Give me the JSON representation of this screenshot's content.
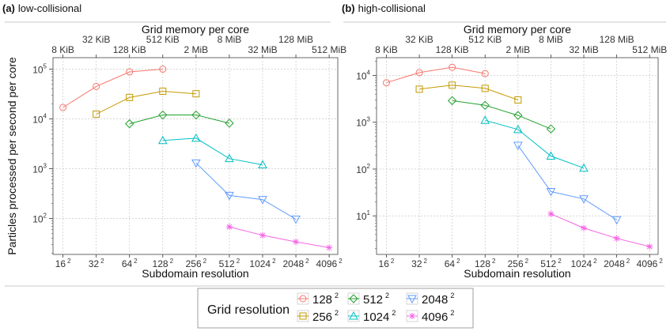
{
  "figure": {
    "y_axis_label": "Particles processed per second per core",
    "x_axis_label": "Subdomain resolution",
    "top_axis_label": "Grid memory per core",
    "legend_title": "Grid resolution"
  },
  "series_styles": [
    {
      "key": "128",
      "label": "128",
      "sup": "2",
      "color": "#f8766d",
      "marker": "circle"
    },
    {
      "key": "256",
      "label": "256",
      "sup": "2",
      "color": "#c49a00",
      "marker": "square"
    },
    {
      "key": "512",
      "label": "512",
      "sup": "2",
      "color": "#22a02c",
      "marker": "diamond"
    },
    {
      "key": "1024",
      "label": "1024",
      "sup": "2",
      "color": "#00bfc4",
      "marker": "triangle-up"
    },
    {
      "key": "2048",
      "label": "2048",
      "sup": "2",
      "color": "#619cff",
      "marker": "triangle-down"
    },
    {
      "key": "4096",
      "label": "4096",
      "sup": "2",
      "color": "#f564e3",
      "marker": "asterisk"
    }
  ],
  "chart_data": [
    {
      "type": "line",
      "panel_tag": "(a)",
      "panel_title": "low-collisional",
      "x_scale": "log2",
      "y_scale": "log10",
      "x_ticks": [
        {
          "value": 16,
          "label": "16",
          "sup": "2"
        },
        {
          "value": 32,
          "label": "32",
          "sup": "2"
        },
        {
          "value": 64,
          "label": "64",
          "sup": "2"
        },
        {
          "value": 128,
          "label": "128",
          "sup": "2"
        },
        {
          "value": 256,
          "label": "256",
          "sup": "2"
        },
        {
          "value": 512,
          "label": "512",
          "sup": "2"
        },
        {
          "value": 1024,
          "label": "1024",
          "sup": "2"
        },
        {
          "value": 2048,
          "label": "2048",
          "sup": "2"
        },
        {
          "value": 4096,
          "label": "4096",
          "sup": "2"
        }
      ],
      "top_ticks_lower": [
        {
          "value": 16,
          "label": "8 KiB"
        },
        {
          "value": 64,
          "label": "128 KiB"
        },
        {
          "value": 256,
          "label": "2 MiB"
        },
        {
          "value": 1024,
          "label": "32 MiB"
        },
        {
          "value": 4096,
          "label": "512 MiB"
        }
      ],
      "top_ticks_upper": [
        {
          "value": 32,
          "label": "32 KiB"
        },
        {
          "value": 128,
          "label": "512 KiB"
        },
        {
          "value": 512,
          "label": "8 MiB"
        },
        {
          "value": 2048,
          "label": "128 MiB"
        }
      ],
      "y_ticks": [
        {
          "value": 100,
          "base": "10",
          "exp": "2"
        },
        {
          "value": 1000,
          "base": "10",
          "exp": "3"
        },
        {
          "value": 10000,
          "base": "10",
          "exp": "4"
        },
        {
          "value": 100000,
          "base": "10",
          "exp": "5"
        }
      ],
      "xlim": [
        13,
        4900
      ],
      "ylim": [
        19,
        170000
      ],
      "series": [
        {
          "key": "128",
          "x": [
            16,
            32,
            64,
            128
          ],
          "y": [
            17000,
            45000,
            88000,
            100000
          ]
        },
        {
          "key": "256",
          "x": [
            32,
            64,
            128,
            256
          ],
          "y": [
            12500,
            27000,
            36000,
            32000
          ]
        },
        {
          "key": "512",
          "x": [
            64,
            128,
            256,
            512
          ],
          "y": [
            8000,
            12000,
            12000,
            8200
          ]
        },
        {
          "key": "1024",
          "x": [
            128,
            256,
            512,
            1024
          ],
          "y": [
            3700,
            4100,
            1600,
            1200
          ]
        },
        {
          "key": "2048",
          "x": [
            256,
            512,
            1024,
            2048
          ],
          "y": [
            1300,
            290,
            240,
            97
          ]
        },
        {
          "key": "4096",
          "x": [
            512,
            1024,
            2048,
            4096
          ],
          "y": [
            68,
            46,
            34,
            26
          ]
        }
      ]
    },
    {
      "type": "line",
      "panel_tag": "(b)",
      "panel_title": "high-collisional",
      "x_scale": "log2",
      "y_scale": "log10",
      "x_ticks": [
        {
          "value": 16,
          "label": "16",
          "sup": "2"
        },
        {
          "value": 32,
          "label": "32",
          "sup": "2"
        },
        {
          "value": 64,
          "label": "64",
          "sup": "2"
        },
        {
          "value": 128,
          "label": "128",
          "sup": "2"
        },
        {
          "value": 256,
          "label": "256",
          "sup": "2"
        },
        {
          "value": 512,
          "label": "512",
          "sup": "2"
        },
        {
          "value": 1024,
          "label": "1024",
          "sup": "2"
        },
        {
          "value": 2048,
          "label": "2048",
          "sup": "2"
        },
        {
          "value": 4096,
          "label": "4096",
          "sup": "2"
        }
      ],
      "top_ticks_lower": [
        {
          "value": 16,
          "label": "8 KiB"
        },
        {
          "value": 64,
          "label": "128 KiB"
        },
        {
          "value": 256,
          "label": "2 MiB"
        },
        {
          "value": 1024,
          "label": "32 MiB"
        },
        {
          "value": 4096,
          "label": "512 MiB"
        }
      ],
      "top_ticks_upper": [
        {
          "value": 32,
          "label": "32 KiB"
        },
        {
          "value": 128,
          "label": "512 KiB"
        },
        {
          "value": 512,
          "label": "8 MiB"
        },
        {
          "value": 2048,
          "label": "128 MiB"
        }
      ],
      "y_ticks": [
        {
          "value": 10,
          "base": "10",
          "exp": "1"
        },
        {
          "value": 100,
          "base": "10",
          "exp": "2"
        },
        {
          "value": 1000,
          "base": "10",
          "exp": "3"
        },
        {
          "value": 10000,
          "base": "10",
          "exp": "4"
        }
      ],
      "xlim": [
        13,
        4900
      ],
      "ylim": [
        1.5,
        24000
      ],
      "series": [
        {
          "key": "128",
          "x": [
            16,
            32,
            64,
            128
          ],
          "y": [
            7000,
            11500,
            15000,
            11000
          ]
        },
        {
          "key": "256",
          "x": [
            32,
            64,
            128,
            256
          ],
          "y": [
            5100,
            6200,
            5300,
            3000
          ]
        },
        {
          "key": "512",
          "x": [
            64,
            128,
            256,
            512
          ],
          "y": [
            2900,
            2300,
            1400,
            720
          ]
        },
        {
          "key": "1024",
          "x": [
            128,
            256,
            512,
            1024
          ],
          "y": [
            1100,
            700,
            190,
            105
          ]
        },
        {
          "key": "2048",
          "x": [
            256,
            512,
            1024,
            2048
          ],
          "y": [
            320,
            33,
            23,
            8.2
          ]
        },
        {
          "key": "4096",
          "x": [
            512,
            1024,
            2048,
            4096
          ],
          "y": [
            11,
            5.5,
            3.3,
            2.2
          ]
        }
      ]
    }
  ]
}
